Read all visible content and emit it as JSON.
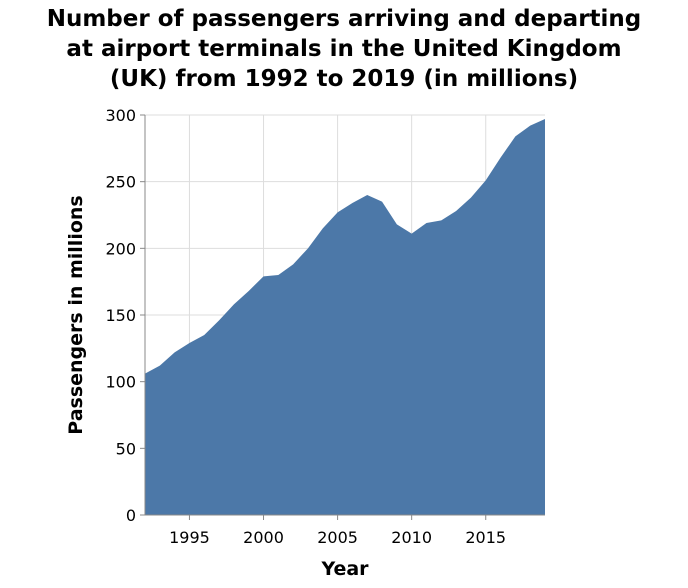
{
  "chart_data": {
    "type": "area",
    "title_lines": [
      "Number of passengers arriving and departing",
      "at airport terminals in the United Kingdom",
      "(UK) from 1992 to 2019 (in millions)"
    ],
    "xlabel": "Year",
    "ylabel": "Passengers in millions",
    "xlim": [
      1992,
      2019
    ],
    "ylim": [
      0,
      300
    ],
    "x_ticks": [
      1995,
      2000,
      2005,
      2010,
      2015
    ],
    "y_ticks": [
      0,
      50,
      100,
      150,
      200,
      250,
      300
    ],
    "grid": true,
    "legend": "none",
    "fill_color": "#4c78a8",
    "x": [
      1992,
      1993,
      1994,
      1995,
      1996,
      1997,
      1998,
      1999,
      2000,
      2001,
      2002,
      2003,
      2004,
      2005,
      2006,
      2007,
      2008,
      2009,
      2010,
      2011,
      2012,
      2013,
      2014,
      2015,
      2016,
      2017,
      2018,
      2019
    ],
    "values": [
      106,
      112,
      122,
      129,
      135,
      146,
      158,
      168,
      179,
      180,
      188,
      200,
      215,
      227,
      234,
      240,
      235,
      218,
      211,
      219,
      221,
      228,
      238,
      251,
      268,
      284,
      292,
      297
    ]
  }
}
